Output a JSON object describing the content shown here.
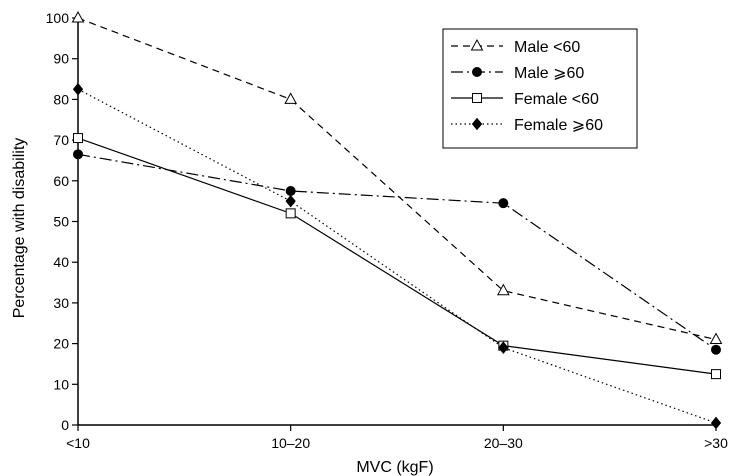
{
  "chart_data": {
    "type": "line",
    "title": "",
    "xlabel": "MVC (kgF)",
    "ylabel": "Percentage with disability",
    "categories": [
      "<10",
      "10–20",
      "20–30",
      ">30"
    ],
    "ylim": [
      0,
      100
    ],
    "yticks": [
      0,
      10,
      20,
      30,
      40,
      50,
      60,
      70,
      80,
      90,
      100
    ],
    "grid": false,
    "legend_position": "top-right",
    "series": [
      {
        "name": "Male <60",
        "values": [
          100,
          80,
          33,
          21
        ],
        "marker": "open-triangle",
        "line": "dashed",
        "color": "#000000"
      },
      {
        "name": "Male ⩾60",
        "values": [
          66.5,
          57.5,
          54.5,
          18.5
        ],
        "marker": "filled-circle",
        "line": "dash-dot",
        "color": "#000000"
      },
      {
        "name": "Female <60",
        "values": [
          70.5,
          52,
          19.5,
          12.5
        ],
        "marker": "open-square",
        "line": "solid",
        "color": "#000000"
      },
      {
        "name": "Female ⩾60",
        "values": [
          82.5,
          55,
          19,
          0.5
        ],
        "marker": "filled-diamond",
        "line": "dotted",
        "color": "#000000"
      }
    ]
  }
}
